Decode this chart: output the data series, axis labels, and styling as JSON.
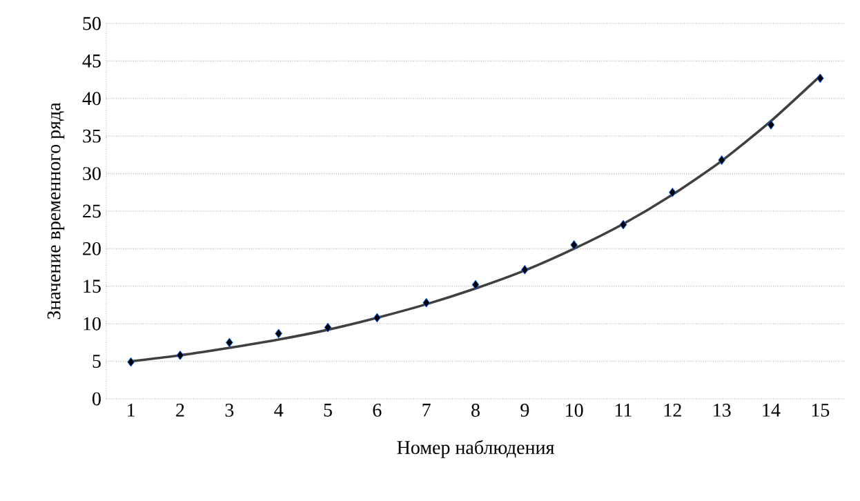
{
  "chart_data": {
    "type": "scatter",
    "xlabel": "Номер наблюдения",
    "ylabel": "Значение временного ряда",
    "categories": [
      "1",
      "2",
      "3",
      "4",
      "5",
      "6",
      "7",
      "8",
      "9",
      "10",
      "11",
      "12",
      "13",
      "14",
      "15"
    ],
    "series": [
      {
        "color": "#000000",
        "marker": "diamond",
        "values": [
          4.9,
          5.8,
          7.5,
          8.7,
          9.5,
          10.8,
          12.8,
          15.2,
          17.2,
          20.5,
          23.2,
          27.5,
          31.8,
          36.5,
          42.7
        ]
      },
      {
        "type": "line",
        "color": "#404040",
        "marker": "none",
        "values": [
          5.0,
          5.8,
          6.8,
          7.9,
          9.2,
          10.8,
          12.6,
          14.7,
          17.1,
          20.0,
          23.3,
          27.2,
          31.7,
          37.0,
          43.0
        ]
      }
    ],
    "ylim": [
      0,
      50
    ],
    "yticks": [
      0,
      5,
      10,
      15,
      20,
      25,
      30,
      35,
      40,
      45,
      50
    ],
    "grid": "y"
  }
}
